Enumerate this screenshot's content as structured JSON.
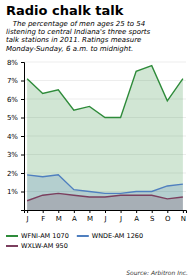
{
  "chart_data": {
    "type": "area",
    "title": "Radio chalk talk",
    "subtitle": "   The percentage of men ages 25 to 54\nlistening to central Indiana's three sports\ntalk stations in 2011. Ratings measure\nMonday-Sunday, 6 a.m. to midnight.",
    "source": "Source: Arbitron Inc.",
    "categories": [
      "J",
      "F",
      "M",
      "A",
      "M",
      "J",
      "J",
      "A",
      "S",
      "O",
      "N"
    ],
    "series": [
      {
        "name": "WFNI-AM 1070",
        "color": "#2e8b3a",
        "values": [
          7.1,
          6.3,
          6.5,
          5.4,
          5.6,
          5.0,
          5.0,
          7.5,
          7.8,
          5.9,
          7.1
        ]
      },
      {
        "name": "WNDE-AM 1260",
        "color": "#4f7fbf",
        "values": [
          1.9,
          1.8,
          1.9,
          1.1,
          1.0,
          0.9,
          0.9,
          1.0,
          1.0,
          1.3,
          1.4
        ]
      },
      {
        "name": "WXLW-AM 950",
        "color": "#7b3f5e",
        "values": [
          0.5,
          0.8,
          0.9,
          0.8,
          0.7,
          0.7,
          0.8,
          0.8,
          0.8,
          0.6,
          0.7
        ]
      }
    ],
    "ylim": [
      0,
      8
    ],
    "yticks": [
      {
        "value": 1,
        "label": "1%"
      },
      {
        "value": 2,
        "label": "2%"
      },
      {
        "value": 3,
        "label": "3%"
      },
      {
        "value": 4,
        "label": "4%"
      },
      {
        "value": 5,
        "label": "5%"
      },
      {
        "value": 6,
        "label": "6%"
      },
      {
        "value": 7,
        "label": "7%"
      },
      {
        "value": 8,
        "label": "8%"
      }
    ],
    "grid": true,
    "legend": "bottom"
  }
}
